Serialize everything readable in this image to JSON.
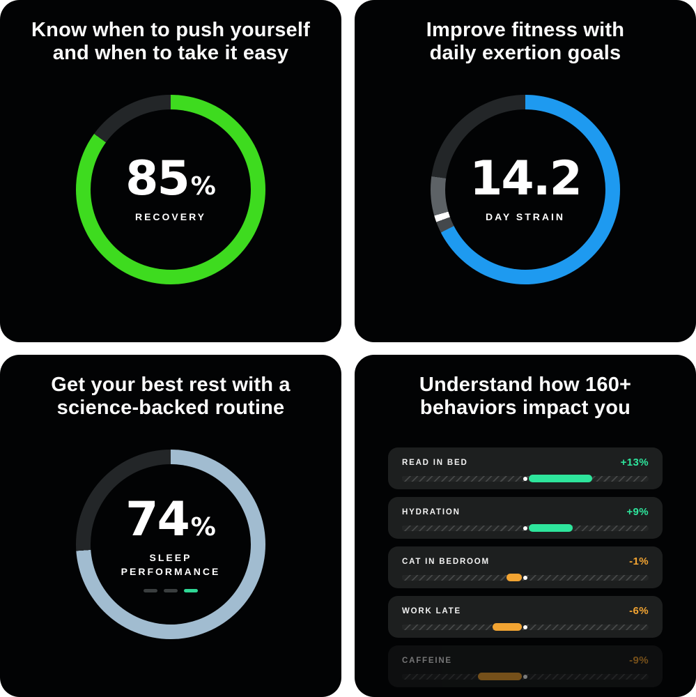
{
  "panels": {
    "recovery": {
      "title_line1": "Know when to push yourself",
      "title_line2": "and when to take it easy",
      "value": "85",
      "unit": "%",
      "label": "RECOVERY",
      "ring_segments": [
        {
          "color": "#3edb1f",
          "from": 0,
          "to": 306
        },
        {
          "color": "#232628",
          "from": 306,
          "to": 360
        }
      ]
    },
    "strain": {
      "title_line1": "Improve fitness with",
      "title_line2": "daily exertion goals",
      "value": "14.2",
      "label": "DAY STRAIN",
      "ring_segments": [
        {
          "color": "#1e9af0",
          "from": 0,
          "to": 243
        },
        {
          "color": "#44484b",
          "from": 243,
          "to": 250
        },
        {
          "color": "#ffffff",
          "from": 250,
          "to": 254
        },
        {
          "color": "#5d6266",
          "from": 254,
          "to": 278
        },
        {
          "color": "#232628",
          "from": 278,
          "to": 360
        }
      ]
    },
    "sleep": {
      "title_line1": "Get your best rest with a",
      "title_line2": "science-backed routine",
      "value": "74",
      "unit": "%",
      "label_line1": "SLEEP",
      "label_line2": "PERFORMANCE",
      "dash_colors": [
        "#3a3e3f",
        "#3a3e3f",
        "#2fd795"
      ],
      "ring_segments": [
        {
          "color": "#a1bcd0",
          "from": 0,
          "to": 266
        },
        {
          "color": "#232628",
          "from": 266,
          "to": 360
        }
      ]
    },
    "behaviors": {
      "title_line1": "Understand how 160+",
      "title_line2": "behaviors impact you",
      "positive_color": "#2ee59c",
      "negative_color": "#f2a432",
      "items": [
        {
          "label": "READ IN BED",
          "value": "+13%",
          "impact": 13,
          "faded": false
        },
        {
          "label": "HYDRATION",
          "value": "+9%",
          "impact": 9,
          "faded": false
        },
        {
          "label": "CAT IN BEDROOM",
          "value": "-1%",
          "impact": -1,
          "faded": false
        },
        {
          "label": "WORK LATE",
          "value": "-6%",
          "impact": -6,
          "faded": false
        },
        {
          "label": "CAFFEINE",
          "value": "-9%",
          "impact": -9,
          "faded": true
        }
      ]
    }
  },
  "chart_data": [
    {
      "type": "pie",
      "title": "Recovery gauge",
      "value": 85,
      "max": 100,
      "unit": "%",
      "label": "RECOVERY",
      "arc_degrees": 306,
      "color": "#3edb1f",
      "track_color": "#232628"
    },
    {
      "type": "pie",
      "title": "Day strain gauge",
      "value": 14.2,
      "max": 21,
      "label": "DAY STRAIN",
      "arc_degrees": 243,
      "color": "#1e9af0",
      "track_color": "#232628",
      "target_marker_degrees": 252
    },
    {
      "type": "pie",
      "title": "Sleep performance gauge",
      "value": 74,
      "max": 100,
      "unit": "%",
      "label": "SLEEP PERFORMANCE",
      "arc_degrees": 266,
      "color": "#a1bcd0",
      "track_color": "#232628"
    },
    {
      "type": "bar",
      "title": "Behavior impacts",
      "categories": [
        "READ IN BED",
        "HYDRATION",
        "CAT IN BEDROOM",
        "WORK LATE",
        "CAFFEINE"
      ],
      "values": [
        13,
        9,
        -1,
        -6,
        -9
      ],
      "unit": "%",
      "orientation": "horizontal",
      "baseline": 0
    }
  ]
}
